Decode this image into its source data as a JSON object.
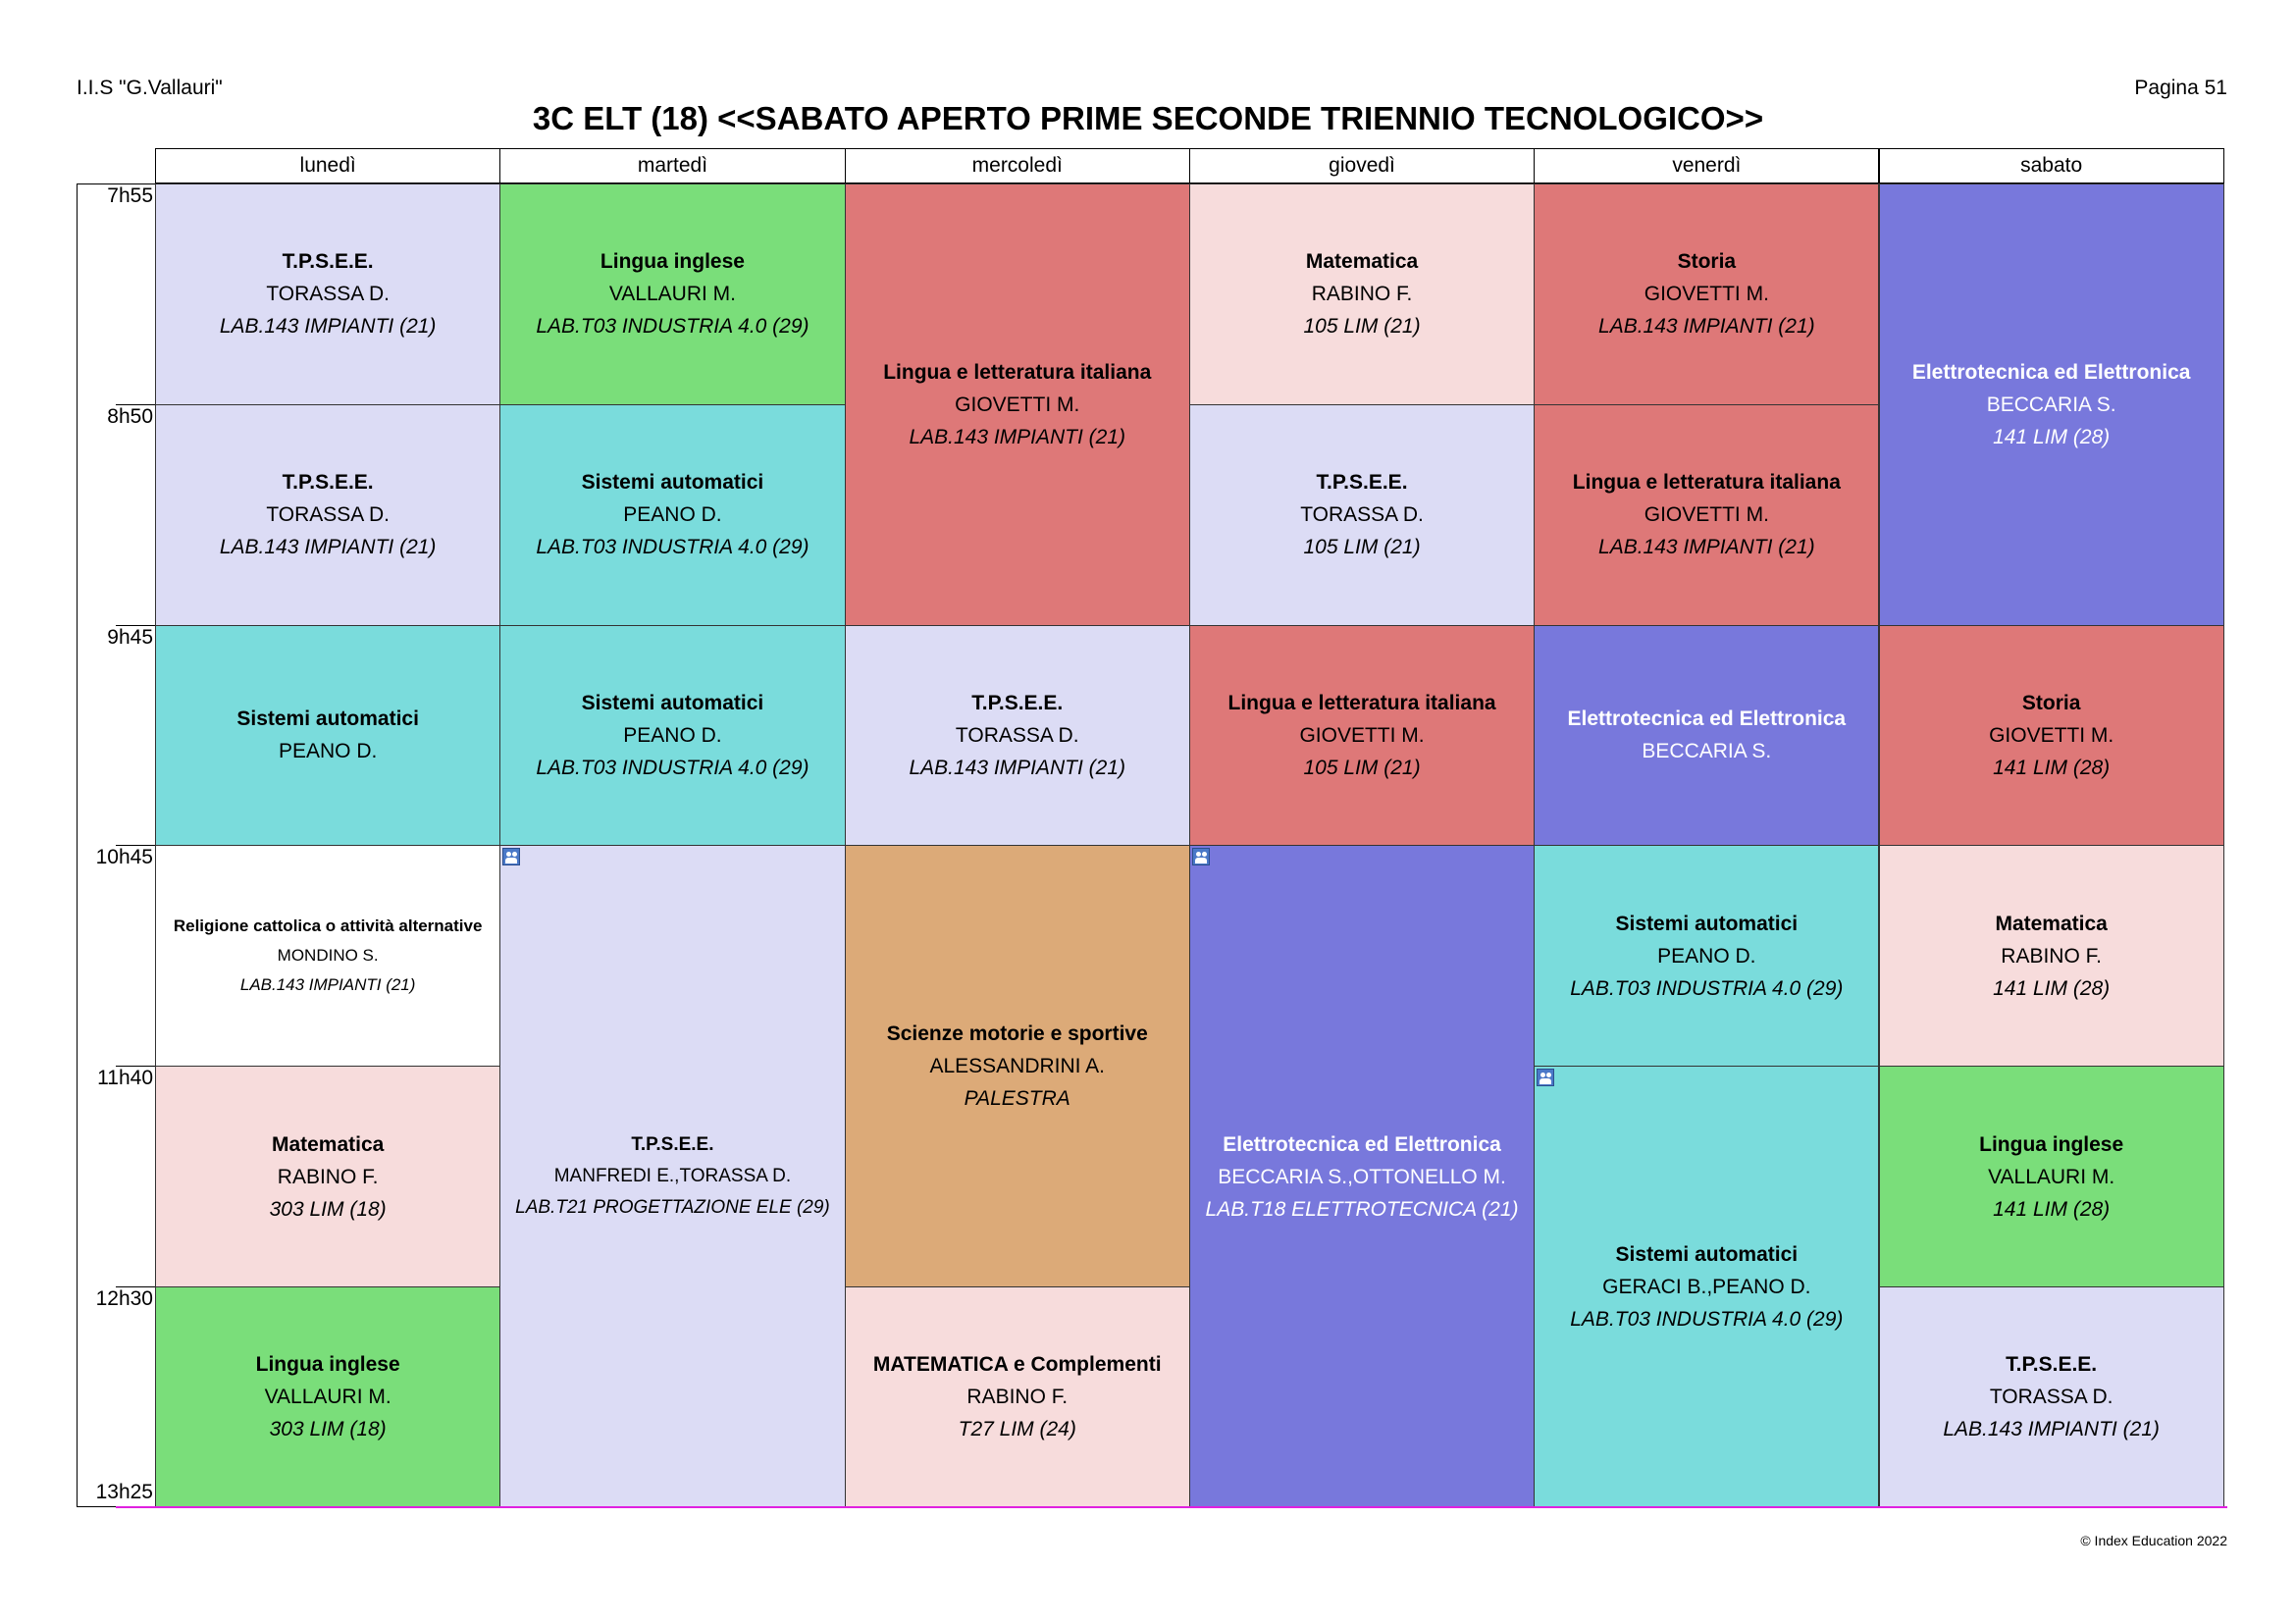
{
  "header": {
    "school": "I.I.S \"G.Vallauri\"",
    "page": "Pagina 51",
    "title": "3C ELT (18) <<SABATO APERTO PRIME SECONDE TRIENNIO TECNOLOGICO>>"
  },
  "days": [
    "lunedì",
    "martedì",
    "mercoledì",
    "giovedì",
    "venerdì",
    "sabato"
  ],
  "times": [
    "7h55",
    "8h50",
    "9h45",
    "10h45",
    "11h40",
    "12h30",
    "13h25"
  ],
  "colors": {
    "tpsee": "#dcdcf5",
    "english": "#7ade7a",
    "italian_history": "#de7878",
    "math": "#f7dcdc",
    "systems": "#7adcdc",
    "electro": "#7878dc",
    "pe": "#dcaa78",
    "religion": "#ffffff",
    "bottom_line": "#e020e0"
  },
  "lessons": [
    {
      "day": 0,
      "start": 0,
      "span": 1,
      "color": "tpsee",
      "subject": "T.P.S.E.E.",
      "teacher": "TORASSA D.",
      "room": "LAB.143 IMPIANTI (21)"
    },
    {
      "day": 0,
      "start": 1,
      "span": 1,
      "color": "tpsee",
      "subject": "T.P.S.E.E.",
      "teacher": "TORASSA D.",
      "room": "LAB.143 IMPIANTI (21)"
    },
    {
      "day": 0,
      "start": 2,
      "span": 1,
      "color": "systems",
      "subject": "Sistemi automatici",
      "teacher": "PEANO D.",
      "room": ""
    },
    {
      "day": 0,
      "start": 3,
      "span": 1,
      "color": "religion",
      "size": "small",
      "subject": "Religione cattolica o attività alternative",
      "teacher": "MONDINO S.",
      "room": "LAB.143 IMPIANTI (21)"
    },
    {
      "day": 0,
      "start": 4,
      "span": 1,
      "color": "math",
      "subject": "Matematica",
      "teacher": "RABINO F.",
      "room": "303 LIM (18)"
    },
    {
      "day": 0,
      "start": 5,
      "span": 1,
      "color": "english",
      "subject": "Lingua inglese",
      "teacher": "VALLAURI M.",
      "room": "303 LIM (18)"
    },
    {
      "day": 1,
      "start": 0,
      "span": 1,
      "color": "english",
      "subject": "Lingua inglese",
      "teacher": "VALLAURI M.",
      "room": "LAB.T03 INDUSTRIA 4.0 (29)"
    },
    {
      "day": 1,
      "start": 1,
      "span": 1,
      "color": "systems",
      "subject": "Sistemi automatici",
      "teacher": "PEANO D.",
      "room": "LAB.T03 INDUSTRIA 4.0 (29)"
    },
    {
      "day": 1,
      "start": 2,
      "span": 1,
      "color": "systems",
      "subject": "Sistemi automatici",
      "teacher": "PEANO D.",
      "room": "LAB.T03 INDUSTRIA 4.0 (29)"
    },
    {
      "day": 1,
      "start": 3,
      "span": 3,
      "color": "tpsee",
      "size": "medium",
      "group": true,
      "subject": "T.P.S.E.E.",
      "teacher": "MANFREDI E.,TORASSA D.",
      "room": "LAB.T21 PROGETTAZIONE ELE (29)"
    },
    {
      "day": 2,
      "start": 0,
      "span": 2,
      "color": "italian_history",
      "subject": "Lingua e letteratura italiana",
      "teacher": "GIOVETTI M.",
      "room": "LAB.143 IMPIANTI (21)"
    },
    {
      "day": 2,
      "start": 2,
      "span": 1,
      "color": "tpsee",
      "subject": "T.P.S.E.E.",
      "teacher": "TORASSA D.",
      "room": "LAB.143 IMPIANTI (21)"
    },
    {
      "day": 2,
      "start": 3,
      "span": 2,
      "color": "pe",
      "subject": "Scienze motorie e sportive",
      "teacher": "ALESSANDRINI A.",
      "room": "PALESTRA"
    },
    {
      "day": 2,
      "start": 5,
      "span": 1,
      "color": "math",
      "subject": "MATEMATICA e Complementi",
      "teacher": "RABINO F.",
      "room": "T27 LIM (24)"
    },
    {
      "day": 3,
      "start": 0,
      "span": 1,
      "color": "math",
      "subject": "Matematica",
      "teacher": "RABINO F.",
      "room": "105 LIM (21)"
    },
    {
      "day": 3,
      "start": 1,
      "span": 1,
      "color": "tpsee",
      "subject": "T.P.S.E.E.",
      "teacher": "TORASSA D.",
      "room": "105 LIM (21)"
    },
    {
      "day": 3,
      "start": 2,
      "span": 1,
      "color": "italian_history",
      "subject": "Lingua e letteratura italiana",
      "teacher": "GIOVETTI M.",
      "room": "105 LIM (21)"
    },
    {
      "day": 3,
      "start": 3,
      "span": 3,
      "color": "electro",
      "light": true,
      "group": true,
      "subject": "Elettrotecnica ed Elettronica",
      "teacher": "BECCARIA S.,OTTONELLO M.",
      "room": "LAB.T18 ELETTROTECNICA (21)"
    },
    {
      "day": 4,
      "start": 0,
      "span": 1,
      "color": "italian_history",
      "subject": "Storia",
      "teacher": "GIOVETTI M.",
      "room": "LAB.143 IMPIANTI (21)"
    },
    {
      "day": 4,
      "start": 1,
      "span": 1,
      "color": "italian_history",
      "subject": "Lingua e letteratura italiana",
      "teacher": "GIOVETTI M.",
      "room": "LAB.143 IMPIANTI (21)"
    },
    {
      "day": 4,
      "start": 2,
      "span": 1,
      "color": "electro",
      "light": true,
      "subject": "Elettrotecnica ed Elettronica",
      "teacher": "BECCARIA S.",
      "room": ""
    },
    {
      "day": 4,
      "start": 3,
      "span": 1,
      "color": "systems",
      "subject": "Sistemi automatici",
      "teacher": "PEANO D.",
      "room": "LAB.T03 INDUSTRIA 4.0 (29)"
    },
    {
      "day": 4,
      "start": 4,
      "span": 2,
      "color": "systems",
      "group": true,
      "subject": "Sistemi automatici",
      "teacher": "GERACI B.,PEANO D.",
      "room": "LAB.T03 INDUSTRIA 4.0 (29)"
    },
    {
      "day": 5,
      "start": 0,
      "span": 2,
      "color": "electro",
      "light": true,
      "subject": "Elettrotecnica ed Elettronica",
      "teacher": "BECCARIA S.",
      "room": "141 LIM (28)"
    },
    {
      "day": 5,
      "start": 2,
      "span": 1,
      "color": "italian_history",
      "subject": "Storia",
      "teacher": "GIOVETTI M.",
      "room": "141 LIM (28)"
    },
    {
      "day": 5,
      "start": 3,
      "span": 1,
      "color": "math",
      "subject": "Matematica",
      "teacher": "RABINO F.",
      "room": "141 LIM (28)"
    },
    {
      "day": 5,
      "start": 4,
      "span": 1,
      "color": "english",
      "subject": "Lingua inglese",
      "teacher": "VALLAURI M.",
      "room": "141 LIM (28)"
    },
    {
      "day": 5,
      "start": 5,
      "span": 1,
      "color": "tpsee",
      "subject": "T.P.S.E.E.",
      "teacher": "TORASSA D.",
      "room": "LAB.143 IMPIANTI (21)"
    }
  ],
  "footer": {
    "copyright": "© Index Education 2022"
  }
}
